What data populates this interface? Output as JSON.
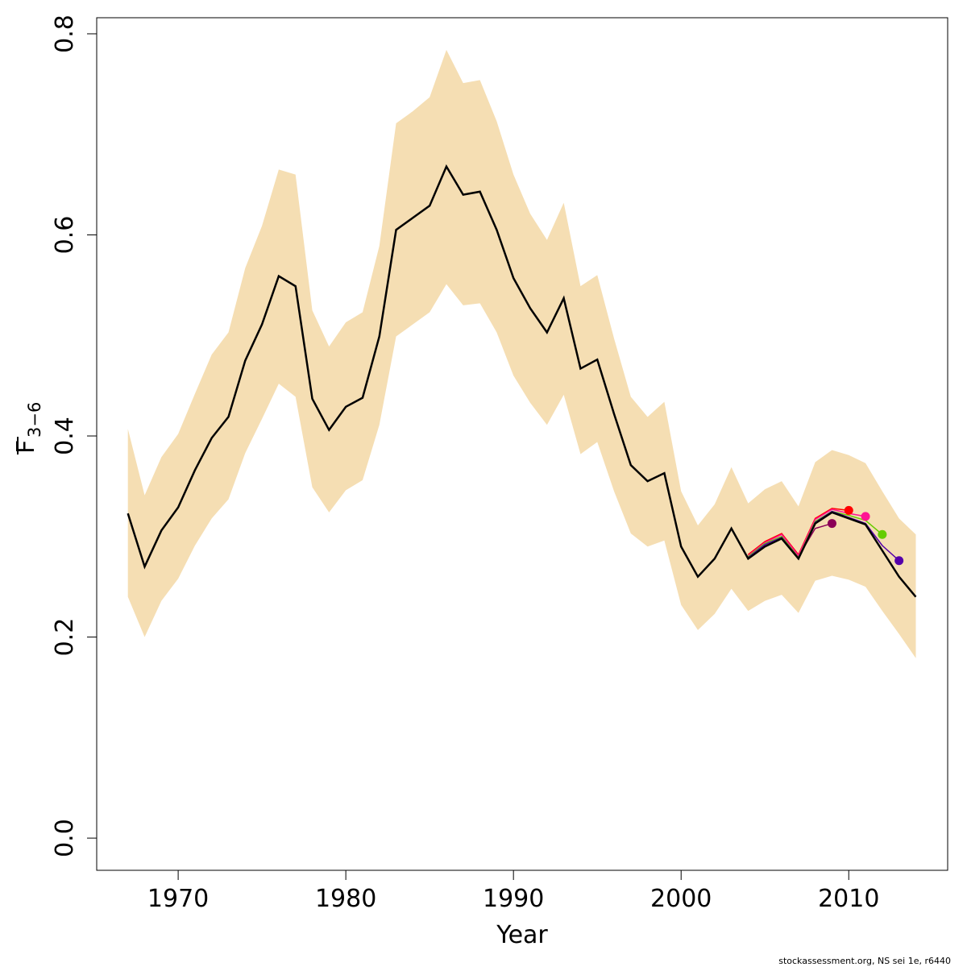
{
  "chart_data": {
    "type": "line",
    "xlabel": "Year",
    "ylabel": "F",
    "ylabel_sub": "3−6",
    "footnote": "stockassessment.org, NS sei 1e, r6440",
    "xlim": [
      1965.14,
      2015.9
    ],
    "ylim": [
      -0.032,
      0.816
    ],
    "xticks": [
      1970,
      1980,
      1990,
      2000,
      2010
    ],
    "yticks": [
      {
        "value": 0,
        "label": "0.0"
      },
      0.2,
      0.4,
      0.6,
      0.8
    ],
    "x": [
      1967,
      1968,
      1969,
      1970,
      1971,
      1972,
      1973,
      1974,
      1975,
      1976,
      1977,
      1978,
      1979,
      1980,
      1981,
      1982,
      1983,
      1984,
      1985,
      1986,
      1987,
      1988,
      1989,
      1990,
      1991,
      1992,
      1993,
      1994,
      1995,
      1996,
      1997,
      1998,
      1999,
      2000,
      2001,
      2002,
      2003,
      2004,
      2005,
      2006,
      2007,
      2008,
      2009,
      2010,
      2011,
      2012,
      2013,
      2014
    ],
    "band": {
      "color": "#f5deb3",
      "upper": [
        0.407,
        0.341,
        0.379,
        0.402,
        0.442,
        0.481,
        0.503,
        0.567,
        0.609,
        0.665,
        0.66,
        0.525,
        0.489,
        0.513,
        0.523,
        0.589,
        0.711,
        0.723,
        0.737,
        0.784,
        0.751,
        0.754,
        0.713,
        0.66,
        0.621,
        0.595,
        0.632,
        0.549,
        0.56,
        0.497,
        0.439,
        0.419,
        0.434,
        0.345,
        0.311,
        0.332,
        0.369,
        0.333,
        0.347,
        0.355,
        0.33,
        0.374,
        0.386,
        0.381,
        0.373,
        0.345,
        0.318,
        0.302
      ],
      "lower": [
        0.24,
        0.2,
        0.236,
        0.258,
        0.291,
        0.318,
        0.337,
        0.383,
        0.417,
        0.452,
        0.439,
        0.349,
        0.324,
        0.346,
        0.356,
        0.411,
        0.499,
        0.511,
        0.523,
        0.551,
        0.53,
        0.532,
        0.503,
        0.46,
        0.433,
        0.411,
        0.441,
        0.382,
        0.394,
        0.345,
        0.303,
        0.29,
        0.296,
        0.232,
        0.207,
        0.223,
        0.248,
        0.226,
        0.236,
        0.242,
        0.224,
        0.256,
        0.261,
        0.257,
        0.25,
        0.226,
        0.203,
        0.179
      ]
    },
    "series": [
      {
        "color": "#000000",
        "values": [
          0.323,
          0.27,
          0.306,
          0.329,
          0.366,
          0.398,
          0.419,
          0.475,
          0.511,
          0.559,
          0.549,
          0.437,
          0.406,
          0.429,
          0.438,
          0.499,
          0.605,
          0.617,
          0.629,
          0.668,
          0.64,
          0.643,
          0.605,
          0.557,
          0.527,
          0.503,
          0.537,
          0.467,
          0.476,
          0.422,
          0.371,
          0.355,
          0.363,
          0.29,
          0.26,
          0.278,
          0.308,
          0.278,
          0.29,
          0.298,
          0.278,
          0.313,
          0.324,
          0.318,
          0.312,
          0.286,
          0.26,
          0.24
        ]
      }
    ],
    "retro": [
      {
        "color": "#8b0057",
        "x": [
          2004,
          2005,
          2006,
          2007,
          2008,
          2009
        ],
        "values": [
          0.28,
          0.292,
          0.3,
          0.28,
          0.308,
          0.313
        ]
      },
      {
        "color": "#ff0000",
        "x": [
          2004,
          2005,
          2006,
          2007,
          2008,
          2009,
          2010
        ],
        "values": [
          0.282,
          0.295,
          0.303,
          0.282,
          0.318,
          0.328,
          0.326
        ]
      },
      {
        "color": "#ff1493",
        "x": [
          2004,
          2005,
          2006,
          2007,
          2008,
          2009,
          2010,
          2011
        ],
        "values": [
          0.281,
          0.294,
          0.302,
          0.281,
          0.317,
          0.327,
          0.323,
          0.32
        ]
      },
      {
        "color": "#66cc00",
        "x": [
          2004,
          2005,
          2006,
          2007,
          2008,
          2009,
          2010,
          2011,
          2012
        ],
        "values": [
          0.28,
          0.293,
          0.3,
          0.279,
          0.315,
          0.325,
          0.321,
          0.316,
          0.302
        ]
      },
      {
        "color": "#5500aa",
        "x": [
          2004,
          2005,
          2006,
          2007,
          2008,
          2009,
          2010,
          2011,
          2012,
          2013
        ],
        "values": [
          0.279,
          0.292,
          0.299,
          0.278,
          0.314,
          0.325,
          0.319,
          0.313,
          0.291,
          0.276
        ]
      }
    ]
  }
}
